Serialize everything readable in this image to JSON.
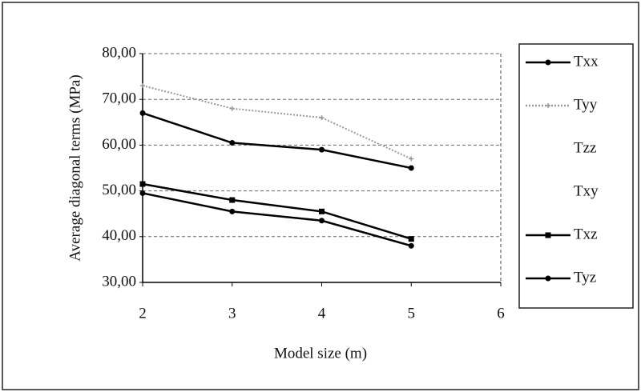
{
  "chart_data": {
    "type": "line",
    "y_label": "Average diagonal terms (MPa)",
    "x_label": "Model size (m)",
    "x": [
      2,
      3,
      4,
      5
    ],
    "series": [
      {
        "name": "Txx",
        "color": "#000000",
        "marker": "circle",
        "values": [
          67,
          60.5,
          59,
          55
        ]
      },
      {
        "name": "Tyy",
        "color": "#999999",
        "marker": "cross",
        "values": [
          73,
          68,
          66,
          57
        ]
      },
      {
        "name": "Tzz",
        "values": [
          null,
          null,
          null,
          null
        ]
      },
      {
        "name": "Txy",
        "values": [
          null,
          null,
          null,
          null
        ]
      },
      {
        "name": "Txz",
        "color": "#000000",
        "marker": "square",
        "values": [
          51.5,
          48,
          45.5,
          39.5
        ]
      },
      {
        "name": "Tyz",
        "color": "#000000",
        "marker": "circle",
        "values": [
          49.5,
          45.5,
          43.5,
          38
        ]
      }
    ],
    "xlim": [
      2,
      6
    ],
    "xticks": [
      2,
      3,
      4,
      5,
      6
    ],
    "ylim": [
      30,
      80
    ],
    "yticks": [
      {
        "value": 30,
        "label": "30,00"
      },
      {
        "value": 40,
        "label": "40,00"
      },
      {
        "value": 50,
        "label": "50,00"
      },
      {
        "value": 60,
        "label": "60,00"
      },
      {
        "value": 70,
        "label": "70,00"
      },
      {
        "value": 80,
        "label": "80,00"
      }
    ],
    "grid": true,
    "legend": "right"
  }
}
